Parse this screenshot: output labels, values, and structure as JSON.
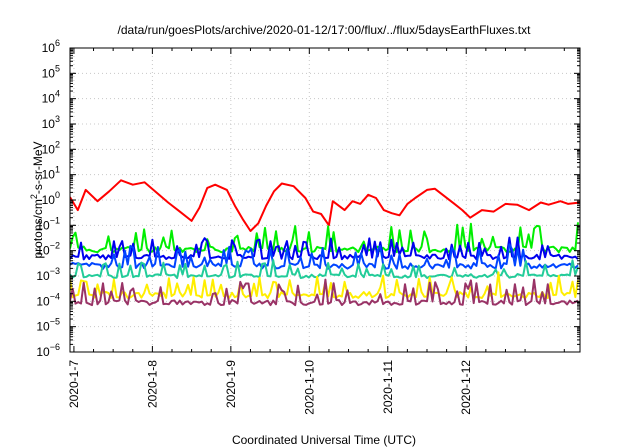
{
  "chart_data": {
    "type": "line",
    "title": "/data/run/goesPlots/archive/2020-01-12/17:00/flux/../flux/5daysEarthFluxes.txt",
    "xlabel": "Coordinated Universal Time (UTC)",
    "ylabel": "protons/cm²-s-sr-MeV",
    "ylabel_parts": {
      "pre": "protons/cm",
      "sup": "2",
      "post": "-s-sr-MeV"
    },
    "yscale": "log",
    "ylim_exp": [
      -6,
      6
    ],
    "ytick_exps": [
      -6,
      -5,
      -4,
      -3,
      -2,
      -1,
      0,
      1,
      2,
      3,
      4,
      5,
      6
    ],
    "ytick_base": "10",
    "xlim_days": [
      -0.05,
      6.45
    ],
    "xticks": [
      {
        "label": "2020-1-7",
        "day": 0
      },
      {
        "label": "2020-1-8",
        "day": 1
      },
      {
        "label": "2020-1-9",
        "day": 2
      },
      {
        "label": "2020-1-10",
        "day": 3
      },
      {
        "label": "2020-1-11",
        "day": 4
      },
      {
        "label": "2020-1-12",
        "day": 5
      }
    ],
    "grid": true,
    "legend": "none",
    "series": [
      {
        "color": "#ff0000",
        "points": [
          [
            -0.05,
            1.3
          ],
          [
            0.05,
            0.4
          ],
          [
            0.15,
            2.5
          ],
          [
            0.3,
            0.9
          ],
          [
            0.45,
            2.2
          ],
          [
            0.6,
            6
          ],
          [
            0.75,
            4
          ],
          [
            0.9,
            5
          ],
          [
            1.05,
            2
          ],
          [
            1.2,
            0.8
          ],
          [
            1.35,
            0.35
          ],
          [
            1.5,
            0.15
          ],
          [
            1.6,
            0.5
          ],
          [
            1.7,
            3
          ],
          [
            1.8,
            4
          ],
          [
            1.95,
            2.5
          ],
          [
            2.05,
            0.6
          ],
          [
            2.15,
            0.18
          ],
          [
            2.25,
            0.06
          ],
          [
            2.35,
            0.12
          ],
          [
            2.45,
            0.6
          ],
          [
            2.55,
            2.2
          ],
          [
            2.65,
            4.5
          ],
          [
            2.8,
            3.5
          ],
          [
            2.95,
            1.2
          ],
          [
            3.05,
            0.35
          ],
          [
            3.15,
            0.28
          ],
          [
            3.25,
            0.1
          ],
          [
            3.3,
            0.9
          ],
          [
            3.45,
            0.4
          ],
          [
            3.55,
            0.9
          ],
          [
            3.65,
            0.7
          ],
          [
            3.75,
            1.6
          ],
          [
            3.85,
            1.2
          ],
          [
            3.95,
            0.4
          ],
          [
            4.05,
            0.3
          ],
          [
            4.15,
            0.25
          ],
          [
            4.25,
            0.7
          ],
          [
            4.35,
            1.2
          ],
          [
            4.5,
            2.5
          ],
          [
            4.6,
            2.8
          ],
          [
            4.7,
            1.6
          ],
          [
            4.85,
            0.7
          ],
          [
            4.95,
            0.4
          ],
          [
            5.05,
            0.2
          ],
          [
            5.2,
            0.4
          ],
          [
            5.35,
            0.35
          ],
          [
            5.5,
            0.7
          ],
          [
            5.65,
            0.65
          ],
          [
            5.8,
            0.4
          ],
          [
            5.95,
            0.8
          ],
          [
            6.05,
            0.65
          ],
          [
            6.2,
            0.9
          ],
          [
            6.3,
            0.7
          ],
          [
            6.45,
            0.8
          ]
        ]
      },
      {
        "color": "#00ee00",
        "base_exp": -1.95,
        "noise": 0.12,
        "spike": 1.0,
        "seed": 11
      },
      {
        "color": "#0000ee",
        "base_exp": -2.25,
        "noise": 0.1,
        "spike": 0.75,
        "seed": 23
      },
      {
        "color": "#0044ff",
        "base_exp": -2.6,
        "noise": 0.12,
        "spike": 0.8,
        "seed": 37
      },
      {
        "color": "#22cc99",
        "base_exp": -3.0,
        "noise": 0.08,
        "spike": 0.6,
        "seed": 41
      },
      {
        "color": "#ffee00",
        "base_exp": -3.75,
        "noise": 0.12,
        "spike": 0.8,
        "seed": 53
      },
      {
        "color": "#993366",
        "base_exp": -4.05,
        "noise": 0.1,
        "spike": 0.9,
        "seed": 67
      }
    ]
  }
}
